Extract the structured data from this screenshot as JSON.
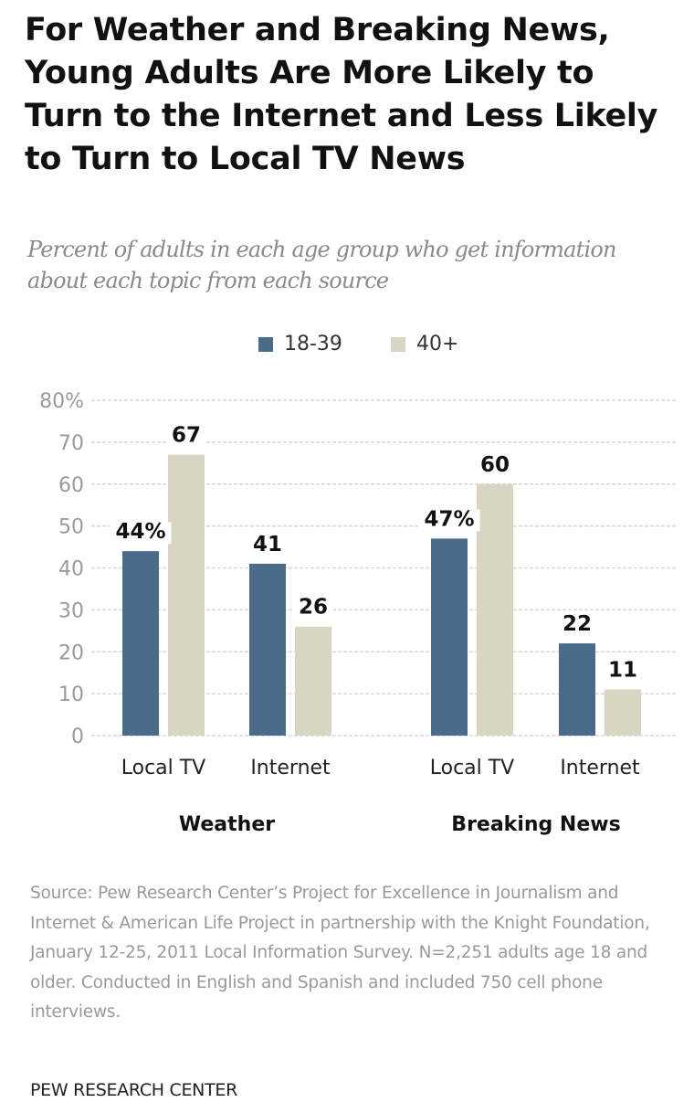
{
  "header": {
    "title": "For Weather and Breaking News, Young Adults Are More Likely to Turn to the Internet and Less Likely to Turn to Local TV News",
    "subtitle": "Percent of adults in each age group who get information about each topic from each source"
  },
  "colors": {
    "series_18_39": "#4a6b8a",
    "series_40_plus": "#d9d5c3",
    "gridline": "#d8d8d8",
    "axis_text": "#9a9a9a"
  },
  "chart_data": {
    "type": "bar",
    "title": "For Weather and Breaking News, Young Adults Are More Likely to Turn to the Internet and Less Likely to Turn to Local TV News",
    "subtitle": "Percent of adults in each age group who get information about each topic from each source",
    "groups": [
      {
        "name": "Weather",
        "categories": [
          "Local TV",
          "Internet"
        ]
      },
      {
        "name": "Breaking News",
        "categories": [
          "Local TV",
          "Internet"
        ]
      }
    ],
    "categories": [
      "Weather - Local TV",
      "Weather - Internet",
      "Breaking News - Local TV",
      "Breaking News - Internet"
    ],
    "category_labels": [
      "Local TV",
      "Internet",
      "Local TV",
      "Internet"
    ],
    "series": [
      {
        "name": "18-39",
        "values": [
          44,
          41,
          47,
          22
        ],
        "labels": [
          "44%",
          "41",
          "47%",
          "22"
        ]
      },
      {
        "name": "40+",
        "values": [
          67,
          26,
          60,
          11
        ],
        "labels": [
          "67",
          "26",
          "60",
          "11"
        ]
      }
    ],
    "xlabel": "",
    "ylabel": "",
    "ylim": [
      0,
      80
    ],
    "yticks": [
      0,
      10,
      20,
      30,
      40,
      50,
      60,
      70,
      80
    ],
    "ytick_labels": [
      "0",
      "10",
      "20",
      "30",
      "40",
      "50",
      "60",
      "70",
      "80%"
    ],
    "grid": true,
    "legend": "top-center"
  },
  "legend": {
    "items": [
      {
        "label": "18-39"
      },
      {
        "label": "40+"
      }
    ]
  },
  "footer": {
    "source": "Source: Pew Research Center’s Project for Excellence in Journalism and Internet & American Life Project in partnership with the Knight Foundation, January 12-25, 2011 Local Information Survey. N=2,251 adults age 18 and older. Conducted in English and Spanish and included 750 cell phone interviews.",
    "credit": "PEW RESEARCH CENTER"
  }
}
